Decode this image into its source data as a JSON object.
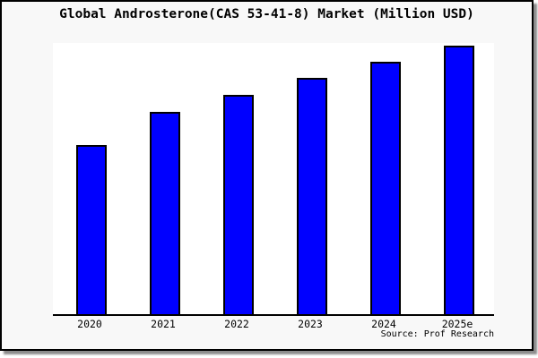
{
  "chart": {
    "title": "Global Androsterone(CAS 53-41-8) Market (Million USD)",
    "source": "Source: Prof Research"
  },
  "chart_data": {
    "type": "bar",
    "title": "Global Androsterone(CAS 53-41-8) Market (Million USD)",
    "categories": [
      "2020",
      "2021",
      "2022",
      "2023",
      "2024",
      "2025e"
    ],
    "values": [
      63,
      75.3,
      81.7,
      88,
      94,
      100
    ],
    "value_scale": "relative units estimated from bar heights (no y-axis labels shown); 2025e = 100",
    "xlabel": "",
    "ylabel": "",
    "ylim": [
      0,
      101
    ],
    "grid": false,
    "legend": false,
    "bar_color": "#0000ff",
    "bar_border_color": "#000000",
    "plot_bg": "#ffffff",
    "canvas_bg": "#f8f8f8",
    "source": "Source: Prof Research"
  }
}
